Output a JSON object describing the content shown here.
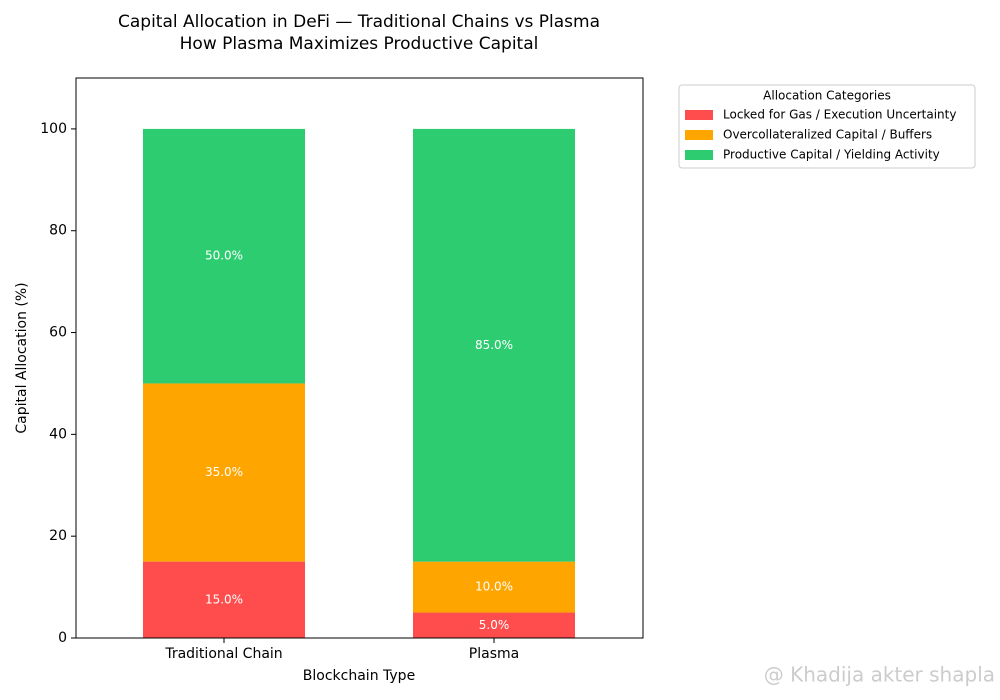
{
  "chart_data": {
    "type": "stacked_bar",
    "title": "Capital Allocation in DeFi — Traditional Chains vs Plasma",
    "subtitle": "How Plasma Maximizes Productive Capital",
    "x_label": "Blockchain Type",
    "y_label": "Capital Allocation (%)",
    "categories": [
      "Traditional Chain",
      "Plasma"
    ],
    "series": [
      {
        "name": "Locked for Gas / Execution Uncertainty",
        "color": "#ff4d4d",
        "values": [
          15,
          5
        ],
        "value_labels": [
          "15.0%",
          "5.0%"
        ]
      },
      {
        "name": "Overcollateralized Capital / Buffers",
        "color": "#ffa500",
        "values": [
          35,
          10
        ],
        "value_labels": [
          "35.0%",
          "10.0%"
        ]
      },
      {
        "name": "Productive Capital / Yielding Activity",
        "color": "#2ecc71",
        "values": [
          50,
          85
        ],
        "value_labels": [
          "50.0%",
          "85.0%"
        ]
      }
    ],
    "ylim": [
      0,
      110
    ],
    "yticks": [
      0,
      20,
      40,
      60,
      80,
      100
    ],
    "legend_title": "Allocation Categories",
    "legend": "upper right outside",
    "watermark": "@ Khadija akter shapla"
  }
}
